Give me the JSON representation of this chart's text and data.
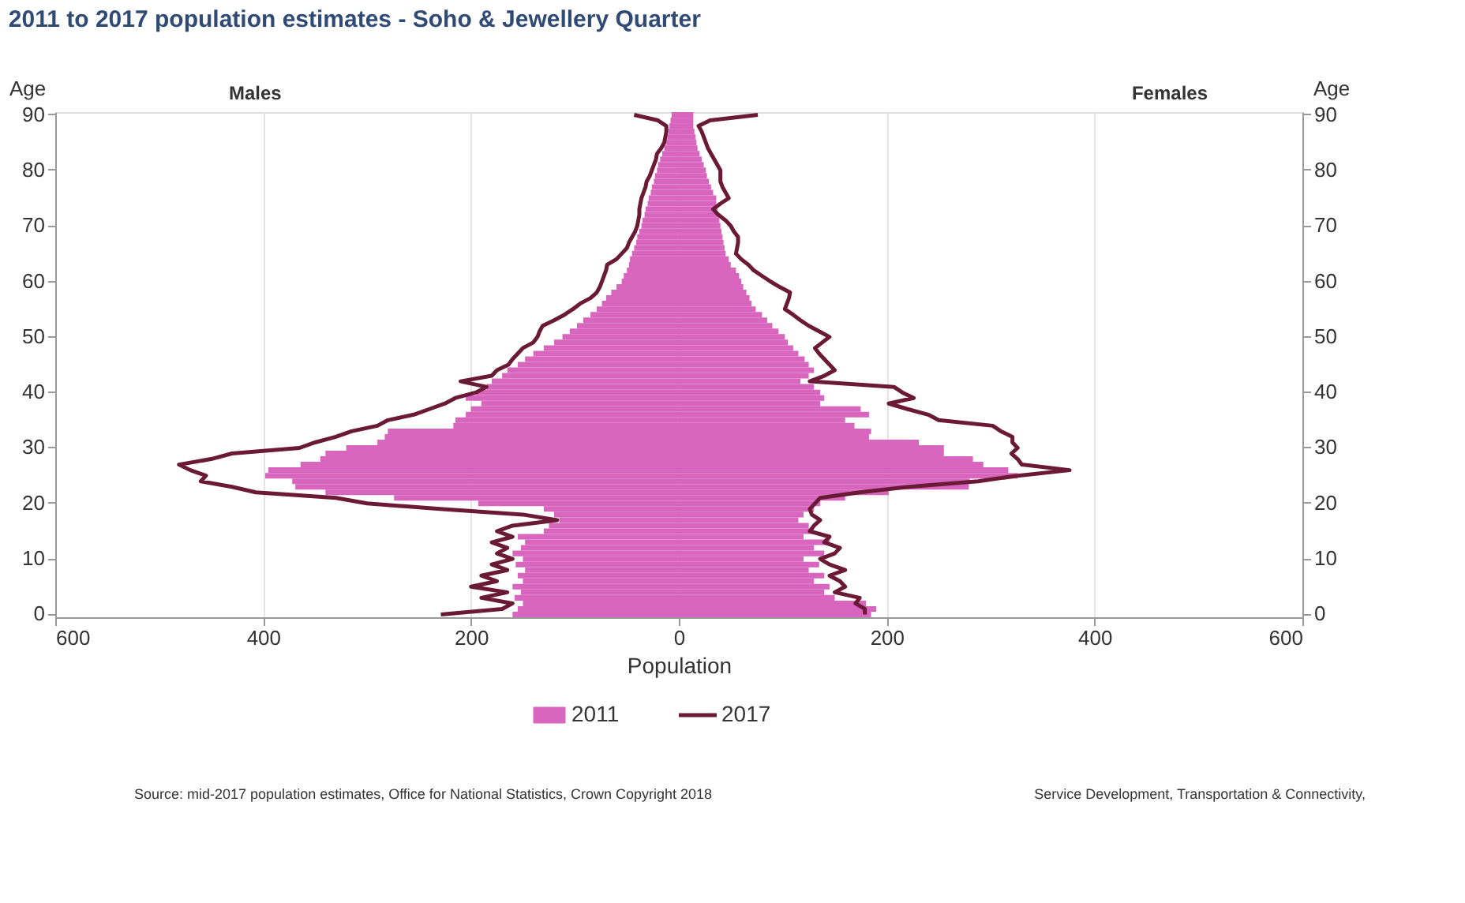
{
  "chart_data": {
    "type": "bar",
    "orientation": "horizontal",
    "title": "2011 to 2017 population estimates   -   Soho & Jewellery Quarter",
    "xlabel": "Population",
    "ylabel": "Age",
    "y2label": "Age",
    "annotations": [
      "Males",
      "Females",
      "Source: mid-2017 population estimates, Office for National Statistics, Crown Copyright 2018",
      "Service Development, Transportation & Connectivity,"
    ],
    "categories": [
      "90",
      null,
      null,
      null,
      null,
      null,
      null,
      null,
      null,
      null,
      "80",
      null,
      null,
      null,
      null,
      null,
      null,
      null,
      null,
      null,
      "70",
      null,
      null,
      null,
      null,
      null,
      null,
      null,
      null,
      null,
      "60",
      null,
      null,
      null,
      null,
      null,
      null,
      null,
      null,
      null,
      "50",
      null,
      null,
      null,
      null,
      null,
      null,
      null,
      null,
      null,
      "40",
      null,
      null,
      null,
      null,
      null,
      null,
      null,
      null,
      null,
      "30",
      null,
      null,
      null,
      null,
      null,
      null,
      null,
      null,
      null,
      "20",
      null,
      null,
      null,
      null,
      null,
      null,
      null,
      null,
      null,
      "10",
      null,
      null,
      null,
      null,
      null,
      null,
      null,
      null,
      null,
      "0"
    ],
    "xlim": [
      -600,
      600
    ],
    "xticks": [
      {
        "value": -600,
        "label": "600"
      },
      {
        "value": -400,
        "label": "400"
      },
      {
        "value": -200,
        "label": "200"
      },
      0,
      200,
      400,
      600
    ],
    "grid": "x",
    "legend": "bottom",
    "stacked": true,
    "series": [
      {
        "name": "2011",
        "color": "#d866be",
        "values": [
          -7,
          -8,
          -9,
          -10,
          -11,
          -12,
          -14,
          -16,
          -18,
          -20,
          -21,
          -23,
          -24,
          -26,
          -27,
          -29,
          -30,
          -32,
          -33,
          -35,
          -36,
          -38,
          -40,
          -41,
          -43,
          -45,
          -47,
          -48,
          -50,
          -53,
          -55,
          -60,
          -65,
          -70,
          -74,
          -79,
          -85,
          -92,
          -98,
          -105,
          -112,
          -120,
          -130,
          -140,
          -148,
          -155,
          -165,
          -170,
          -180,
          -185,
          -195,
          -205,
          -190,
          -200,
          -205,
          -215,
          -217,
          -280,
          -283,
          -290,
          -320,
          -340,
          -345,
          -364,
          -395,
          -398,
          -372,
          -369,
          -340,
          -274,
          -193,
          -130,
          -120,
          -115,
          -125,
          -130,
          -155,
          -148,
          -152,
          -160,
          -150,
          -157,
          -148,
          -155,
          -150,
          -160,
          -152,
          -158,
          -150,
          -155,
          -160
        ]
      },
      {
        "color": "#d866be",
        "values": [
          14,
          14,
          14,
          15,
          16,
          17,
          18,
          20,
          22,
          24,
          26,
          27,
          29,
          31,
          33,
          36,
          36,
          37,
          38,
          39,
          40,
          41,
          42,
          43,
          44,
          45,
          48,
          50,
          55,
          58,
          60,
          62,
          65,
          68,
          70,
          74,
          80,
          85,
          90,
          96,
          102,
          105,
          110,
          115,
          121,
          125,
          130,
          125,
          117,
          130,
          136,
          140,
          136,
          175,
          183,
          160,
          169,
          185,
          183,
          231,
          255,
          255,
          283,
          293,
          317,
          326,
          280,
          279,
          202,
          160,
          136,
          130,
          120,
          115,
          125,
          130,
          120,
          145,
          130,
          140,
          120,
          135,
          125,
          140,
          130,
          145,
          140,
          150,
          180,
          190,
          185
        ]
      },
      {
        "name": "2017",
        "type": "line",
        "color": "#6b1a35",
        "values": [
          -43,
          -20,
          -12,
          -12,
          -13,
          -14,
          -17,
          -21,
          -22,
          -24,
          -26,
          -28,
          -31,
          -32,
          -34,
          -36,
          -37,
          -38,
          -38,
          -39,
          -40,
          -42,
          -45,
          -48,
          -50,
          -55,
          -60,
          -69,
          -70,
          -72,
          -74,
          -76,
          -79,
          -85,
          -95,
          -102,
          -110,
          -120,
          -131,
          -134,
          -136,
          -140,
          -150,
          -155,
          -160,
          -164,
          -175,
          -180,
          -210,
          -185,
          -195,
          -215,
          -225,
          -240,
          -255,
          -280,
          -290,
          -315,
          -330,
          -350,
          -365,
          -430,
          -450,
          -481,
          -470,
          -455,
          -460,
          -430,
          -407,
          -330,
          -300,
          -230,
          -150,
          -117,
          -160,
          -175,
          -160,
          -180,
          -165,
          -175,
          -160,
          -180,
          -165,
          -190,
          -175,
          -200,
          -165,
          -190,
          -160,
          -170,
          -229
        ]
      },
      {
        "type": "line",
        "color": "#6b1a35",
        "values": [
          76,
          30,
          19,
          22,
          24,
          26,
          28,
          31,
          34,
          37,
          40,
          40,
          40,
          42,
          45,
          48,
          40,
          33,
          38,
          45,
          50,
          53,
          57,
          57,
          56,
          55,
          60,
          67,
          72,
          80,
          88,
          97,
          107,
          106,
          104,
          102,
          110,
          117,
          125,
          135,
          145,
          138,
          131,
          135,
          140,
          145,
          150,
          140,
          126,
          207,
          215,
          226,
          202,
          220,
          240,
          250,
          302,
          310,
          321,
          321,
          326,
          320,
          326,
          330,
          376,
          326,
          288,
          221,
          174,
          136,
          131,
          126,
          128,
          136,
          130,
          126,
          145,
          140,
          155,
          150,
          136,
          145,
          160,
          145,
          155,
          160,
          150,
          174,
          170,
          179,
          179
        ]
      }
    ]
  }
}
